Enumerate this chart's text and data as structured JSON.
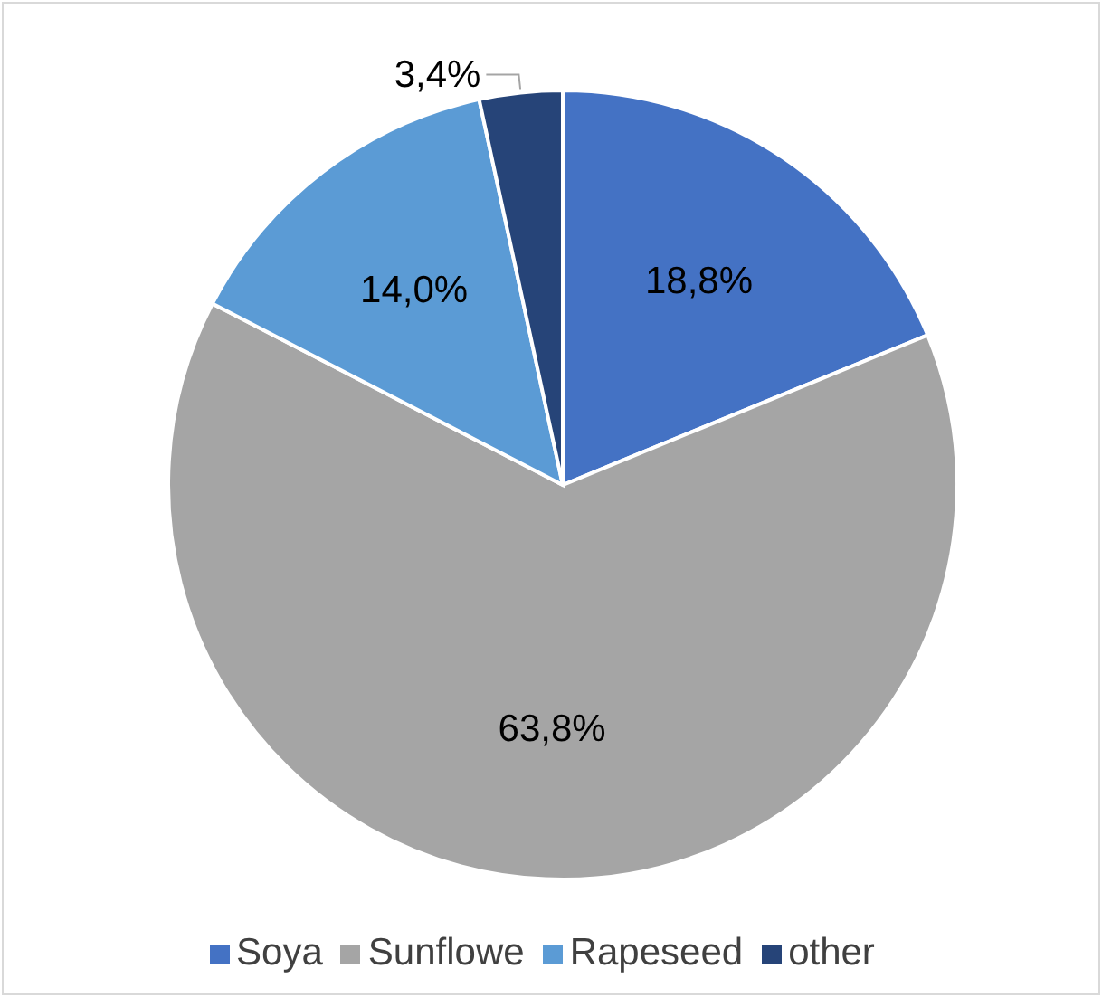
{
  "chart_data": {
    "type": "pie",
    "categories": [
      "Soya",
      "Sunflowe",
      "Rapeseed",
      "other"
    ],
    "values": [
      18.8,
      63.8,
      14.0,
      3.4
    ],
    "colors": [
      "#4472c4",
      "#a5a5a5",
      "#5b9bd5",
      "#264478"
    ],
    "value_labels": [
      "18,8%",
      "63,8%",
      "14,0%",
      "3,4%"
    ],
    "legend": "bottom"
  }
}
